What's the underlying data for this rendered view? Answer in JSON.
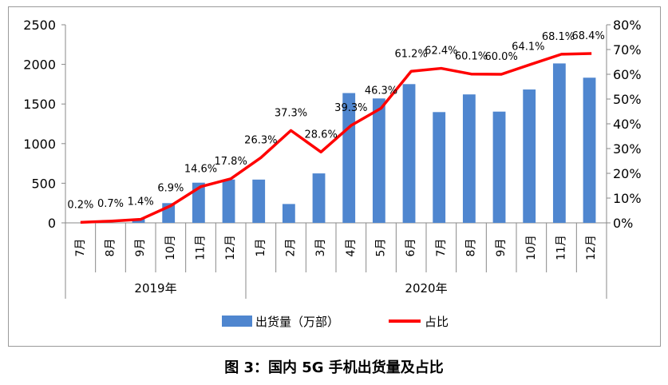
{
  "chart_data": {
    "type": "bar+line",
    "title": "图 3：国内 5G 手机出货量及占比",
    "categories": [
      "7月",
      "8月",
      "9月",
      "10月",
      "11月",
      "12月",
      "1月",
      "2月",
      "3月",
      "4月",
      "5月",
      "6月",
      "7月",
      "8月",
      "9月",
      "10月",
      "11月",
      "12月"
    ],
    "groups": [
      {
        "label": "2019年",
        "count": 6
      },
      {
        "label": "2020年",
        "count": 12
      }
    ],
    "series": [
      {
        "name": "出货量（万部）",
        "type": "bar",
        "axis": "left",
        "color": "#4f86cf",
        "values": [
          0,
          0,
          50,
          249,
          507,
          547,
          546,
          238,
          624,
          1638,
          1570,
          1751,
          1398,
          1621,
          1404,
          1683,
          2012,
          1832
        ]
      },
      {
        "name": "占比",
        "type": "line",
        "axis": "right",
        "color": "#ff0000",
        "values": [
          0.2,
          0.7,
          1.4,
          6.9,
          14.6,
          17.8,
          26.3,
          37.3,
          28.6,
          39.3,
          46.3,
          61.2,
          62.4,
          60.1,
          60.0,
          64.1,
          68.1,
          68.4
        ],
        "labels": [
          "0.2%",
          "0.7%",
          "1.4%",
          "6.9%",
          "14.6%",
          "17.8%",
          "26.3%",
          "37.3%",
          "28.6%",
          "39.3%",
          "46.3%",
          "61.2%",
          "62.4%",
          "60.1%",
          "60.0%",
          "64.1%",
          "68.1%",
          "68.4%"
        ]
      }
    ],
    "yleft": {
      "lim": [
        0,
        2500
      ],
      "ticks": [
        "0",
        "500",
        "1000",
        "1500",
        "2000",
        "2500"
      ]
    },
    "yright": {
      "lim": [
        0,
        80
      ],
      "ticks": [
        "0%",
        "10%",
        "20%",
        "30%",
        "40%",
        "50%",
        "60%",
        "70%",
        "80%"
      ]
    },
    "legend": "bottom",
    "grid": false
  }
}
